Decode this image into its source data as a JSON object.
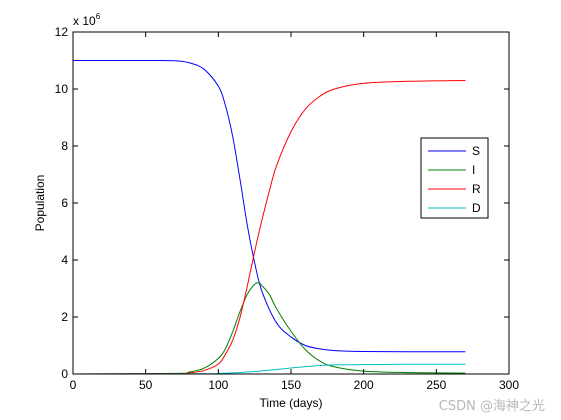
{
  "chart_data": {
    "type": "line",
    "xlabel": "Time (days)",
    "ylabel": "Population",
    "y_multiplier_label": "x 10",
    "y_multiplier_exponent": "6",
    "xlim": [
      0,
      300
    ],
    "ylim": [
      0,
      12
    ],
    "x_ticks": [
      "0",
      "50",
      "100",
      "150",
      "200",
      "250",
      "300"
    ],
    "y_ticks": [
      "0",
      "2",
      "4",
      "6",
      "8",
      "10",
      "12"
    ],
    "grid": false,
    "legend_position": "right",
    "series": [
      {
        "name": "S",
        "color": "#0000ff",
        "points": [
          [
            0,
            11.0
          ],
          [
            50,
            11.0
          ],
          [
            70,
            10.99
          ],
          [
            80,
            10.92
          ],
          [
            90,
            10.7
          ],
          [
            100,
            10.1
          ],
          [
            105,
            9.4
          ],
          [
            110,
            8.3
          ],
          [
            115,
            6.8
          ],
          [
            120,
            5.2
          ],
          [
            125,
            3.9
          ],
          [
            130,
            2.9
          ],
          [
            140,
            1.8
          ],
          [
            150,
            1.3
          ],
          [
            160,
            1.0
          ],
          [
            170,
            0.88
          ],
          [
            180,
            0.82
          ],
          [
            200,
            0.79
          ],
          [
            230,
            0.78
          ],
          [
            270,
            0.78
          ]
        ]
      },
      {
        "name": "I",
        "color": "#008000",
        "points": [
          [
            0,
            0.0
          ],
          [
            70,
            0.02
          ],
          [
            80,
            0.07
          ],
          [
            90,
            0.2
          ],
          [
            100,
            0.55
          ],
          [
            105,
            0.9
          ],
          [
            110,
            1.5
          ],
          [
            115,
            2.2
          ],
          [
            120,
            2.8
          ],
          [
            125,
            3.15
          ],
          [
            128,
            3.2
          ],
          [
            130,
            3.1
          ],
          [
            135,
            2.8
          ],
          [
            140,
            2.3
          ],
          [
            150,
            1.5
          ],
          [
            160,
            0.85
          ],
          [
            170,
            0.45
          ],
          [
            180,
            0.25
          ],
          [
            200,
            0.1
          ],
          [
            230,
            0.05
          ],
          [
            270,
            0.03
          ]
        ]
      },
      {
        "name": "R",
        "color": "#ff0000",
        "points": [
          [
            0,
            0.0
          ],
          [
            70,
            0.01
          ],
          [
            80,
            0.04
          ],
          [
            90,
            0.12
          ],
          [
            100,
            0.35
          ],
          [
            105,
            0.7
          ],
          [
            110,
            1.2
          ],
          [
            115,
            2.0
          ],
          [
            120,
            3.1
          ],
          [
            125,
            4.3
          ],
          [
            130,
            5.4
          ],
          [
            135,
            6.4
          ],
          [
            140,
            7.3
          ],
          [
            150,
            8.5
          ],
          [
            160,
            9.3
          ],
          [
            170,
            9.75
          ],
          [
            180,
            10.0
          ],
          [
            200,
            10.2
          ],
          [
            230,
            10.27
          ],
          [
            270,
            10.3
          ]
        ]
      },
      {
        "name": "D",
        "color": "#00bfbf",
        "points": [
          [
            0,
            0.0
          ],
          [
            90,
            0.01
          ],
          [
            100,
            0.02
          ],
          [
            110,
            0.04
          ],
          [
            120,
            0.07
          ],
          [
            130,
            0.11
          ],
          [
            140,
            0.16
          ],
          [
            150,
            0.21
          ],
          [
            160,
            0.26
          ],
          [
            170,
            0.3
          ],
          [
            180,
            0.32
          ],
          [
            200,
            0.33
          ],
          [
            230,
            0.34
          ],
          [
            270,
            0.34
          ]
        ]
      }
    ]
  },
  "watermark": "CSDN @海神之光"
}
